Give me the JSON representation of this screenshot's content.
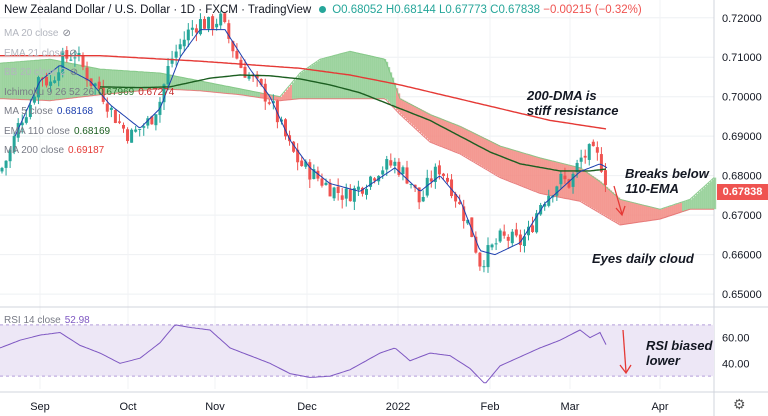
{
  "header": {
    "title": "New Zealand Dollar / U.S. Dollar · 1D · FXCM · TradingView",
    "o": "O0.68052",
    "h": "H0.68144",
    "l": "L0.67773",
    "c": "C0.67838",
    "chg": "−0.00215 (−0.32%)"
  },
  "legend": {
    "ma20": {
      "name": "MA 20 close"
    },
    "ema21": {
      "name": "EMA 21 close"
    },
    "bb20": {
      "name": "BB 20 close 2"
    },
    "ichimoku": {
      "name": "Ichimoku 9 26 52 26",
      "v1": "0.67969",
      "v2": "0.67274"
    },
    "ma5": {
      "name": "MA 5 close",
      "v": "0.68168"
    },
    "ema110": {
      "name": "EMA 110 close",
      "v": "0.68169"
    },
    "ma200": {
      "name": "MA 200 close",
      "v": "0.69187"
    }
  },
  "rsi": {
    "name": "RSI 14 close",
    "value": "52.98"
  },
  "annotations": {
    "dma": [
      "200-DMA is",
      "stiff resistance"
    ],
    "breaks": [
      "Breaks below",
      "110-EMA"
    ],
    "cloud": "Eyes daily cloud",
    "rsi": [
      "RSI biased",
      "lower"
    ]
  },
  "last_price_tag": "0.67838",
  "colors": {
    "up": "#26a69a",
    "down": "#ef5350",
    "ma200": "#e53935",
    "ema110": "#1b5e20",
    "ma5": "#1e40af",
    "cloud_bull": "#81c784",
    "cloud_bear": "#f28b82",
    "rsi": "#7e57c2"
  },
  "chart_data": {
    "type": "candlestick",
    "symbol": "NZDUSD",
    "timeframe": "1D",
    "price_axis": {
      "ticks": [
        0.72,
        0.71,
        0.7,
        0.69,
        0.68,
        0.67,
        0.66,
        0.65
      ],
      "range": [
        0.6485,
        0.7245
      ]
    },
    "rsi_axis": {
      "ticks": [
        60.0,
        40.0
      ],
      "range": [
        20,
        80
      ]
    },
    "x_labels": [
      "Sep",
      "Oct",
      "Nov",
      "Dec",
      "2022",
      "Feb",
      "Mar",
      "Apr"
    ],
    "price_path_knots": [
      [
        0,
        0.681
      ],
      [
        10,
        0.686
      ],
      [
        20,
        0.694
      ],
      [
        30,
        0.698
      ],
      [
        40,
        0.706
      ],
      [
        50,
        0.703
      ],
      [
        60,
        0.709
      ],
      [
        75,
        0.711
      ],
      [
        90,
        0.704
      ],
      [
        100,
        0.702
      ],
      [
        110,
        0.697
      ],
      [
        120,
        0.693
      ],
      [
        130,
        0.69
      ],
      [
        140,
        0.692
      ],
      [
        150,
        0.694
      ],
      [
        160,
        0.699
      ],
      [
        170,
        0.709
      ],
      [
        180,
        0.713
      ],
      [
        190,
        0.717
      ],
      [
        200,
        0.719
      ],
      [
        210,
        0.718
      ],
      [
        220,
        0.72
      ],
      [
        230,
        0.714
      ],
      [
        240,
        0.708
      ],
      [
        250,
        0.705
      ],
      [
        260,
        0.702
      ],
      [
        270,
        0.699
      ],
      [
        280,
        0.693
      ],
      [
        290,
        0.687
      ],
      [
        300,
        0.683
      ],
      [
        310,
        0.681
      ],
      [
        320,
        0.679
      ],
      [
        330,
        0.677
      ],
      [
        345,
        0.675
      ],
      [
        360,
        0.677
      ],
      [
        380,
        0.682
      ],
      [
        395,
        0.683
      ],
      [
        410,
        0.679
      ],
      [
        420,
        0.673
      ],
      [
        430,
        0.679
      ],
      [
        440,
        0.682
      ],
      [
        450,
        0.678
      ],
      [
        460,
        0.672
      ],
      [
        470,
        0.667
      ],
      [
        480,
        0.658
      ],
      [
        490,
        0.661
      ],
      [
        500,
        0.664
      ],
      [
        510,
        0.664
      ],
      [
        520,
        0.663
      ],
      [
        530,
        0.666
      ],
      [
        540,
        0.673
      ],
      [
        550,
        0.676
      ],
      [
        560,
        0.679
      ],
      [
        570,
        0.678
      ],
      [
        580,
        0.684
      ],
      [
        590,
        0.686
      ],
      [
        600,
        0.684
      ],
      [
        607,
        0.678
      ]
    ],
    "ma5_knots": [
      [
        15,
        0.69
      ],
      [
        40,
        0.704
      ],
      [
        60,
        0.708
      ],
      [
        90,
        0.704
      ],
      [
        110,
        0.698
      ],
      [
        140,
        0.692
      ],
      [
        160,
        0.697
      ],
      [
        180,
        0.71
      ],
      [
        200,
        0.717
      ],
      [
        225,
        0.717
      ],
      [
        250,
        0.707
      ],
      [
        270,
        0.7
      ],
      [
        290,
        0.689
      ],
      [
        310,
        0.682
      ],
      [
        330,
        0.678
      ],
      [
        360,
        0.676
      ],
      [
        395,
        0.682
      ],
      [
        420,
        0.676
      ],
      [
        440,
        0.68
      ],
      [
        460,
        0.674
      ],
      [
        480,
        0.661
      ],
      [
        495,
        0.66
      ],
      [
        520,
        0.663
      ],
      [
        545,
        0.673
      ],
      [
        580,
        0.681
      ],
      [
        600,
        0.683
      ],
      [
        607,
        0.682
      ]
    ],
    "ema110_knots": [
      [
        100,
        0.7025
      ],
      [
        140,
        0.7023
      ],
      [
        170,
        0.7025
      ],
      [
        210,
        0.7047
      ],
      [
        240,
        0.7055
      ],
      [
        270,
        0.7053
      ],
      [
        300,
        0.7045
      ],
      [
        330,
        0.703
      ],
      [
        360,
        0.701
      ],
      [
        400,
        0.697
      ],
      [
        430,
        0.694
      ],
      [
        460,
        0.69
      ],
      [
        490,
        0.686
      ],
      [
        520,
        0.683
      ],
      [
        560,
        0.6812
      ],
      [
        590,
        0.6812
      ],
      [
        607,
        0.6817
      ]
    ],
    "ma200_knots": [
      [
        0,
        0.7104
      ],
      [
        100,
        0.7104
      ],
      [
        200,
        0.709
      ],
      [
        300,
        0.7072
      ],
      [
        350,
        0.7055
      ],
      [
        400,
        0.703
      ],
      [
        450,
        0.7
      ],
      [
        500,
        0.697
      ],
      [
        550,
        0.694
      ],
      [
        607,
        0.6918
      ]
    ],
    "cloud_upper_knots": [
      [
        0,
        0.7085
      ],
      [
        50,
        0.7095
      ],
      [
        100,
        0.707
      ],
      [
        160,
        0.706
      ],
      [
        200,
        0.704
      ],
      [
        240,
        0.702
      ],
      [
        280,
        0.7
      ],
      [
        300,
        0.706
      ],
      [
        320,
        0.7095
      ],
      [
        350,
        0.7115
      ],
      [
        385,
        0.7095
      ],
      [
        400,
        0.6995
      ],
      [
        430,
        0.6955
      ],
      [
        460,
        0.6925
      ],
      [
        500,
        0.6875
      ],
      [
        540,
        0.6845
      ],
      [
        580,
        0.682
      ],
      [
        600,
        0.6785
      ],
      [
        620,
        0.674
      ],
      [
        660,
        0.6715
      ],
      [
        690,
        0.674
      ],
      [
        714,
        0.6795
      ]
    ],
    "cloud_lower_knots": [
      [
        0,
        0.6995
      ],
      [
        50,
        0.699
      ],
      [
        100,
        0.7005
      ],
      [
        160,
        0.702
      ],
      [
        200,
        0.7015
      ],
      [
        240,
        0.7005
      ],
      [
        280,
        0.699
      ],
      [
        300,
        0.6995
      ],
      [
        320,
        0.6995
      ],
      [
        350,
        0.6995
      ],
      [
        385,
        0.6995
      ],
      [
        400,
        0.6955
      ],
      [
        430,
        0.6885
      ],
      [
        460,
        0.6855
      ],
      [
        500,
        0.6795
      ],
      [
        540,
        0.6755
      ],
      [
        580,
        0.6735
      ],
      [
        600,
        0.6705
      ],
      [
        620,
        0.6675
      ],
      [
        660,
        0.669
      ],
      [
        690,
        0.6715
      ],
      [
        714,
        0.6715
      ]
    ],
    "rsi_knots": [
      [
        0,
        52
      ],
      [
        20,
        58
      ],
      [
        40,
        62
      ],
      [
        60,
        64
      ],
      [
        80,
        54
      ],
      [
        100,
        48
      ],
      [
        120,
        40
      ],
      [
        140,
        44
      ],
      [
        160,
        56
      ],
      [
        175,
        70
      ],
      [
        190,
        68
      ],
      [
        210,
        66
      ],
      [
        230,
        52
      ],
      [
        250,
        46
      ],
      [
        270,
        40
      ],
      [
        290,
        32
      ],
      [
        310,
        29
      ],
      [
        330,
        30
      ],
      [
        350,
        35
      ],
      [
        380,
        48
      ],
      [
        395,
        52
      ],
      [
        410,
        42
      ],
      [
        430,
        48
      ],
      [
        450,
        46
      ],
      [
        470,
        36
      ],
      [
        485,
        24
      ],
      [
        500,
        38
      ],
      [
        520,
        45
      ],
      [
        540,
        52
      ],
      [
        560,
        58
      ],
      [
        580,
        66
      ],
      [
        590,
        60
      ],
      [
        600,
        64
      ],
      [
        607,
        53
      ]
    ]
  }
}
